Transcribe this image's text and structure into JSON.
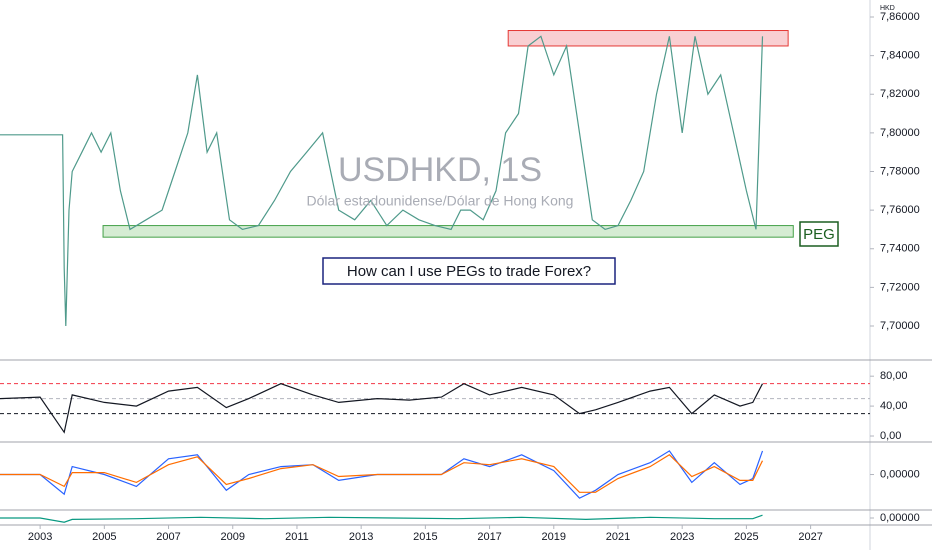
{
  "chart_data": [
    {
      "type": "line",
      "title": "USDHKD, 1S",
      "subtitle": "Dólar estadounidense/Dólar de Hong Kong",
      "unit_label": "HKD",
      "annotations": [
        "How can I use PEGs to trade Forex?",
        "PEG"
      ],
      "xlim": [
        2001.75,
        2028.85
      ],
      "ylim": [
        7.6824,
        7.8688
      ],
      "yticks": [
        {
          "value": 7.86,
          "label": "7,86000"
        },
        {
          "value": 7.84,
          "label": "7,84000"
        },
        {
          "value": 7.82,
          "label": "7,82000"
        },
        {
          "value": 7.8,
          "label": "7,80000"
        },
        {
          "value": 7.78,
          "label": "7,78000"
        },
        {
          "value": 7.76,
          "label": "7,76000"
        },
        {
          "value": 7.74,
          "label": "7,74000"
        },
        {
          "value": 7.72,
          "label": "7,72000"
        },
        {
          "value": 7.7,
          "label": "7,70000"
        }
      ],
      "x": [
        2001.75,
        2002.5,
        2003.3,
        2003.7,
        2003.75,
        2003.8,
        2003.9,
        2004.0,
        2004.3,
        2004.6,
        2004.9,
        2005.2,
        2005.5,
        2005.8,
        2006.3,
        2006.8,
        2007.2,
        2007.6,
        2007.9,
        2008.2,
        2008.5,
        2008.9,
        2009.3,
        2009.8,
        2010.3,
        2010.8,
        2011.3,
        2011.8,
        2012.3,
        2012.8,
        2013.3,
        2013.8,
        2014.3,
        2014.8,
        2015.3,
        2015.8,
        2016.1,
        2016.4,
        2016.8,
        2017.2,
        2017.5,
        2017.9,
        2018.2,
        2018.6,
        2019.0,
        2019.4,
        2019.8,
        2020.2,
        2020.6,
        2021.0,
        2021.4,
        2021.8,
        2022.2,
        2022.6,
        2023.0,
        2023.4,
        2023.8,
        2024.2,
        2024.6,
        2025.0,
        2025.3,
        2025.5
      ],
      "series": [
        {
          "color": "#4f9a8b",
          "values": [
            7.799,
            7.799,
            7.799,
            7.799,
            7.73,
            7.7,
            7.76,
            7.78,
            7.79,
            7.8,
            7.79,
            7.8,
            7.77,
            7.75,
            7.755,
            7.76,
            7.78,
            7.8,
            7.83,
            7.79,
            7.8,
            7.755,
            7.75,
            7.752,
            7.765,
            7.78,
            7.79,
            7.8,
            7.76,
            7.755,
            7.765,
            7.752,
            7.76,
            7.755,
            7.752,
            7.75,
            7.76,
            7.76,
            7.755,
            7.77,
            7.8,
            7.81,
            7.845,
            7.85,
            7.83,
            7.845,
            7.8,
            7.755,
            7.75,
            7.752,
            7.765,
            7.78,
            7.82,
            7.85,
            7.8,
            7.85,
            7.82,
            7.83,
            7.8,
            7.77,
            7.75,
            7.85
          ]
        }
      ],
      "zones": [
        {
          "ylim": [
            7.845,
            7.853
          ],
          "xlim": [
            2017.58,
            2026.3
          ],
          "color": "#f9cfd2",
          "border": "#e53935"
        },
        {
          "ylim": [
            7.746,
            7.752
          ],
          "xlim": [
            2004.96,
            2026.46
          ],
          "color": "#d5ecd3",
          "border": "#43a047"
        }
      ]
    },
    {
      "type": "line",
      "xlim": [
        2001.75,
        2028.85
      ],
      "ylim": [
        -8,
        100.3
      ],
      "yticks": [
        {
          "value": 80,
          "label": "80,00"
        },
        {
          "value": 40,
          "label": "40,00"
        },
        {
          "value": 0,
          "label": "0,00"
        }
      ],
      "levels": [
        {
          "value": 70,
          "color": "#f23645"
        },
        {
          "value": 50,
          "color": "#b2b5be"
        },
        {
          "value": 30,
          "color": "#131722"
        }
      ],
      "x": [
        2001.75,
        2003,
        2003.75,
        2004,
        2005,
        2006,
        2007,
        2007.9,
        2008.8,
        2009.5,
        2010.5,
        2011.5,
        2012.3,
        2013.5,
        2014.5,
        2015.5,
        2016.2,
        2017,
        2018,
        2019,
        2019.8,
        2020.3,
        2021,
        2022,
        2022.6,
        2023.3,
        2024,
        2024.8,
        2025.2,
        2025.5
      ],
      "series": [
        {
          "color": "#131722",
          "values": [
            50,
            52,
            5,
            55,
            45,
            40,
            60,
            65,
            38,
            50,
            70,
            55,
            45,
            50,
            48,
            52,
            70,
            55,
            65,
            55,
            30,
            35,
            45,
            60,
            65,
            30,
            55,
            40,
            45,
            70
          ]
        }
      ]
    },
    {
      "type": "line",
      "xlim": [
        2001.75,
        2028.85
      ],
      "ylim": [
        -0.018,
        0.016
      ],
      "yticks": [
        {
          "value": 0,
          "label": "0,00000"
        }
      ],
      "x": [
        2001.75,
        2003,
        2003.75,
        2004,
        2005,
        2006,
        2007,
        2007.9,
        2008.8,
        2009.5,
        2010.5,
        2011.5,
        2012.3,
        2013.5,
        2014.5,
        2015.5,
        2016.2,
        2017,
        2018,
        2019,
        2019.8,
        2020.3,
        2021,
        2022,
        2022.6,
        2023.3,
        2024,
        2024.8,
        2025.2,
        2025.5
      ],
      "series": [
        {
          "color": "#2962ff",
          "values": [
            0,
            0,
            -0.01,
            0.004,
            0,
            -0.006,
            0.008,
            0.01,
            -0.008,
            0,
            0.004,
            0.005,
            -0.003,
            0,
            0,
            0,
            0.008,
            0.004,
            0.01,
            0.002,
            -0.012,
            -0.008,
            0,
            0.006,
            0.012,
            -0.004,
            0.006,
            -0.005,
            -0.002,
            0.012
          ]
        },
        {
          "color": "#ff6d00",
          "values": [
            0,
            0,
            -0.006,
            0.001,
            0.001,
            -0.004,
            0.005,
            0.009,
            -0.005,
            -0.002,
            0.003,
            0.005,
            -0.001,
            0,
            0,
            0,
            0.006,
            0.005,
            0.008,
            0.004,
            -0.009,
            -0.009,
            -0.002,
            0.004,
            0.01,
            -0.001,
            0.004,
            -0.003,
            -0.003,
            0.007
          ]
        }
      ]
    },
    {
      "type": "line",
      "xlim": [
        2001.75,
        2028.85
      ],
      "ylim": [
        -0.01,
        0.01
      ],
      "yticks": [
        {
          "value": 0,
          "label": "0,00000"
        }
      ],
      "xticks": [
        2003,
        2005,
        2007,
        2009,
        2011,
        2013,
        2015,
        2017,
        2019,
        2021,
        2023,
        2025,
        2027
      ],
      "x": [
        2001.75,
        2003,
        2003.75,
        2004,
        2006,
        2008,
        2010,
        2012,
        2014,
        2016,
        2018,
        2020,
        2022,
        2024,
        2025.2,
        2025.5
      ],
      "series": [
        {
          "color": "#089981",
          "values": [
            0,
            0,
            -0.006,
            -0.002,
            -0.001,
            0.001,
            -0.001,
            0.001,
            0,
            -0.001,
            0.001,
            -0.002,
            0.001,
            -0.001,
            -0.001,
            0.004
          ]
        }
      ]
    }
  ]
}
